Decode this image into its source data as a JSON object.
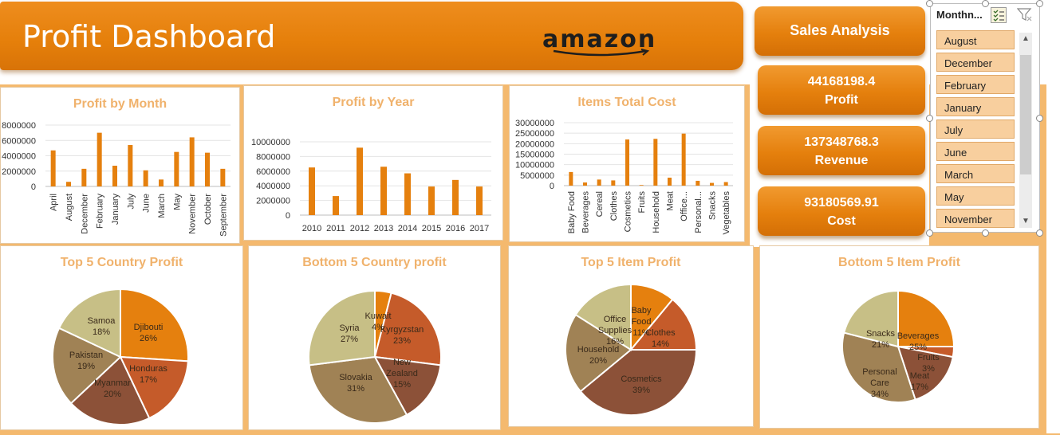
{
  "header": {
    "title": "Profit Dashboard",
    "brand": "amazon"
  },
  "side": {
    "sales_label": "Sales Analysis",
    "profit_value": "44168198.4",
    "profit_label": "Profit",
    "revenue_value": "137348768.3",
    "revenue_label": "Revenue",
    "cost_value": "93180569.91",
    "cost_label": "Cost"
  },
  "slicer": {
    "header": "Monthn...",
    "items": [
      "August",
      "December",
      "February",
      "January",
      "July",
      "June",
      "March",
      "May",
      "November"
    ]
  },
  "colors": {
    "bar": "#e5800e",
    "accent": "#e5800e",
    "title": "#f0b26c"
  },
  "chart_data": [
    {
      "type": "bar",
      "title": "Profit by Month",
      "categories": [
        "April",
        "August",
        "December",
        "February",
        "January",
        "July",
        "June",
        "March",
        "May",
        "November",
        "October",
        "September"
      ],
      "values": [
        4700000,
        600000,
        2300000,
        7000000,
        2700000,
        5400000,
        2100000,
        900000,
        4500000,
        6400000,
        4400000,
        2300000
      ],
      "yticks": [
        "8000000",
        "6000000",
        "4000000",
        "2000000",
        "0"
      ],
      "ylim": [
        0,
        8000000
      ],
      "grid": true
    },
    {
      "type": "bar",
      "title": "Profit by Year",
      "categories": [
        "2010",
        "2011",
        "2012",
        "2013",
        "2014",
        "2015",
        "2016",
        "2017"
      ],
      "values": [
        6500000,
        2600000,
        9200000,
        6600000,
        5700000,
        3900000,
        4800000,
        3900000
      ],
      "yticks": [
        "10000000",
        "8000000",
        "6000000",
        "4000000",
        "2000000",
        "0"
      ],
      "ylim": [
        0,
        10000000
      ],
      "grid": true
    },
    {
      "type": "bar",
      "title": "Items Total Cost",
      "categories": [
        "Baby Food",
        "Beverages",
        "Cereal",
        "Clothes",
        "Cosmetics",
        "Fruits",
        "Household",
        "Meat",
        "Office...",
        "Personal...",
        "Snacks",
        "Vegetables"
      ],
      "values": [
        6500000,
        1500000,
        2900000,
        2500000,
        22000000,
        300000,
        22300000,
        3800000,
        24800000,
        2300000,
        1300000,
        1700000
      ],
      "yticks": [
        "30000000",
        "25000000",
        "20000000",
        "15000000",
        "10000000",
        "5000000",
        "0"
      ],
      "ylim": [
        0,
        30000000
      ],
      "grid": true
    },
    {
      "type": "pie",
      "title": "Top 5 Country Profit",
      "slices": [
        {
          "label": "Djibouti",
          "value": 26,
          "pct": "26%",
          "color": "#e5800e"
        },
        {
          "label": "Honduras",
          "value": 17,
          "pct": "17%",
          "color": "#c55b2a"
        },
        {
          "label": "Myanmar",
          "value": 20,
          "pct": "20%",
          "color": "#8c5138"
        },
        {
          "label": "Pakistan",
          "value": 19,
          "pct": "19%",
          "color": "#a08255"
        },
        {
          "label": "Samoa",
          "value": 18,
          "pct": "18%",
          "color": "#c7bf86"
        }
      ]
    },
    {
      "type": "pie",
      "title": "Bottom 5 Country profit",
      "slices": [
        {
          "label": "Kuwait",
          "value": 4,
          "pct": "4%",
          "color": "#e5800e"
        },
        {
          "label": "Kyrgyzstan",
          "value": 23,
          "pct": "23%",
          "color": "#c55b2a"
        },
        {
          "label": "New Zealand",
          "value": 15,
          "pct": "15%",
          "color": "#8c5138"
        },
        {
          "label": "Slovakia",
          "value": 31,
          "pct": "31%",
          "color": "#a08255"
        },
        {
          "label": "Syria",
          "value": 27,
          "pct": "27%",
          "color": "#c7bf86"
        }
      ]
    },
    {
      "type": "pie",
      "title": "Top 5 Item Profit",
      "slices": [
        {
          "label": "Baby Food",
          "value": 11,
          "pct": "11%",
          "color": "#e5800e"
        },
        {
          "label": "Clothes",
          "value": 14,
          "pct": "14%",
          "color": "#c55b2a"
        },
        {
          "label": "Cosmetics",
          "value": 39,
          "pct": "39%",
          "color": "#8c5138"
        },
        {
          "label": "Household",
          "value": 20,
          "pct": "20%",
          "color": "#a08255"
        },
        {
          "label": "Office Supplies",
          "value": 16,
          "pct": "16%",
          "color": "#c7bf86"
        }
      ]
    },
    {
      "type": "pie",
      "title": "Bottom 5 Item Profit",
      "slices": [
        {
          "label": "Beverages",
          "value": 25,
          "pct": "25%",
          "color": "#e5800e"
        },
        {
          "label": "Fruits",
          "value": 3,
          "pct": "3%",
          "color": "#c55b2a"
        },
        {
          "label": "Meat",
          "value": 17,
          "pct": "17%",
          "color": "#8c5138"
        },
        {
          "label": "Personal Care",
          "value": 34,
          "pct": "34%",
          "color": "#a08255"
        },
        {
          "label": "Snacks",
          "value": 21,
          "pct": "21%",
          "color": "#c7bf86"
        }
      ]
    }
  ]
}
